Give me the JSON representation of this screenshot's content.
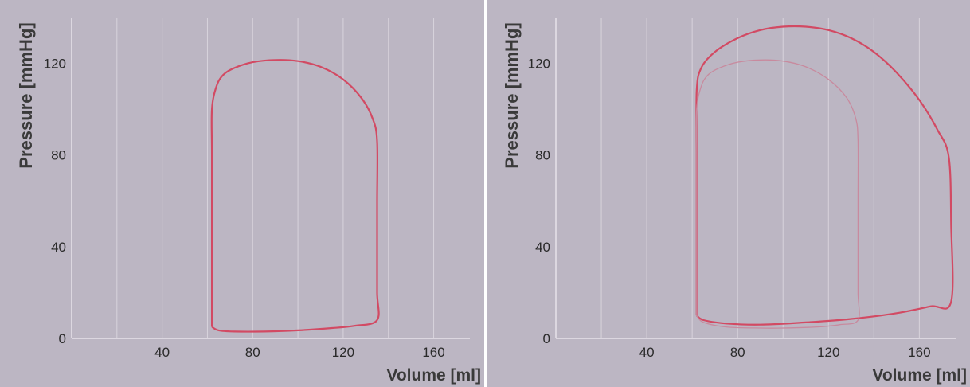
{
  "chart_data": [
    {
      "type": "line",
      "xlabel": "Volume [ml]",
      "ylabel": "Pressure [mmHg]",
      "xlim": [
        0,
        176
      ],
      "ylim": [
        0,
        140
      ],
      "x_ticks": [
        {
          "value": 40,
          "label": "40"
        },
        {
          "value": 80,
          "label": "80"
        },
        {
          "value": 120,
          "label": "120"
        },
        {
          "value": 160,
          "label": "160"
        }
      ],
      "y_ticks": [
        {
          "value": 0,
          "label": "0"
        },
        {
          "value": 40,
          "label": "40"
        },
        {
          "value": 80,
          "label": "80"
        },
        {
          "value": 120,
          "label": "120"
        }
      ],
      "grid": "vertical",
      "series": [
        {
          "color": "#d24a63",
          "points": [
            [
              62,
              5
            ],
            [
              62,
              40
            ],
            [
              62,
              80
            ],
            [
              62,
              100
            ],
            [
              64,
              110
            ],
            [
              67,
              115
            ],
            [
              72,
              118
            ],
            [
              80,
              120.5
            ],
            [
              90,
              121.5
            ],
            [
              100,
              121
            ],
            [
              110,
              118.5
            ],
            [
              120,
              113
            ],
            [
              128,
              105
            ],
            [
              133,
              96
            ],
            [
              135,
              86
            ],
            [
              135,
              60
            ],
            [
              135,
              40
            ],
            [
              135,
              20
            ],
            [
              135,
              8
            ],
            [
              125,
              5.5
            ],
            [
              115,
              4.5
            ],
            [
              100,
              3.5
            ],
            [
              85,
              3
            ],
            [
              72,
              3
            ],
            [
              65,
              3.5
            ],
            [
              62,
              5
            ]
          ]
        }
      ]
    },
    {
      "type": "line",
      "xlabel": "Volume [ml]",
      "ylabel": "Pressure [mmHg]",
      "xlim": [
        0,
        176
      ],
      "ylim": [
        0,
        140
      ],
      "x_ticks": [
        {
          "value": 40,
          "label": "40"
        },
        {
          "value": 80,
          "label": "80"
        },
        {
          "value": 120,
          "label": "120"
        },
        {
          "value": 160,
          "label": "160"
        }
      ],
      "y_ticks": [
        {
          "value": 0,
          "label": "0"
        },
        {
          "value": 40,
          "label": "40"
        },
        {
          "value": 80,
          "label": "80"
        },
        {
          "value": 120,
          "label": "120"
        }
      ],
      "grid": "vertical",
      "series": [
        {
          "color": "#d24a63",
          "points": [
            [
              62,
              10
            ],
            [
              62,
              40
            ],
            [
              62,
              80
            ],
            [
              62,
              108
            ],
            [
              64,
              118
            ],
            [
              70,
              125
            ],
            [
              80,
              131
            ],
            [
              90,
              134.5
            ],
            [
              100,
              136
            ],
            [
              110,
              136
            ],
            [
              120,
              134.5
            ],
            [
              130,
              131
            ],
            [
              140,
              125
            ],
            [
              150,
              116
            ],
            [
              160,
              104
            ],
            [
              168,
              91
            ],
            [
              173,
              79
            ],
            [
              174,
              50
            ],
            [
              174,
              16
            ],
            [
              165,
              14
            ],
            [
              150,
              11
            ],
            [
              130,
              8.5
            ],
            [
              110,
              7
            ],
            [
              90,
              6
            ],
            [
              75,
              6.5
            ],
            [
              65,
              8
            ],
            [
              62,
              10
            ]
          ]
        },
        {
          "color": "#c88a9e",
          "points": [
            [
              62,
              10
            ],
            [
              62,
              40
            ],
            [
              62,
              80
            ],
            [
              62,
              100
            ],
            [
              64,
              110
            ],
            [
              67,
              115
            ],
            [
              72,
              118
            ],
            [
              80,
              120.5
            ],
            [
              90,
              121.5
            ],
            [
              100,
              121
            ],
            [
              110,
              118.5
            ],
            [
              120,
              113
            ],
            [
              128,
              105
            ],
            [
              132,
              96
            ],
            [
              133,
              86
            ],
            [
              133,
              60
            ],
            [
              133,
              40
            ],
            [
              133,
              20
            ],
            [
              133,
              8
            ],
            [
              125,
              6
            ],
            [
              115,
              5
            ],
            [
              100,
              4.5
            ],
            [
              90,
              4.5
            ],
            [
              75,
              5
            ],
            [
              65,
              7
            ],
            [
              62,
              10
            ]
          ]
        }
      ]
    }
  ]
}
